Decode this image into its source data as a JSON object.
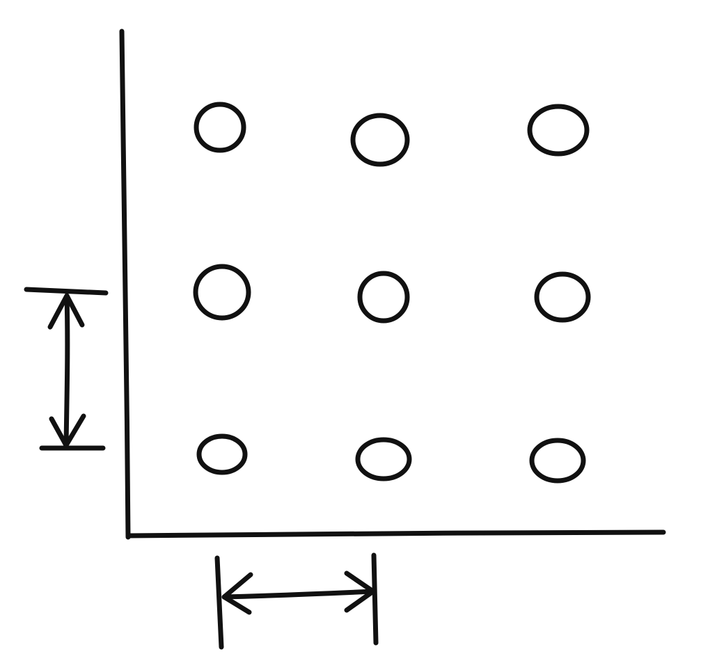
{
  "diagram": {
    "description_free": true,
    "ink_color": "#111111",
    "background_color": "#ffffff",
    "grid": {
      "rows": 3,
      "columns": 3,
      "marker_shape": "circle-outline"
    },
    "axes": {
      "vertical": true,
      "horizontal": true
    },
    "dimension_arrows": {
      "vertical_spacing": true,
      "horizontal_spacing": true
    }
  }
}
